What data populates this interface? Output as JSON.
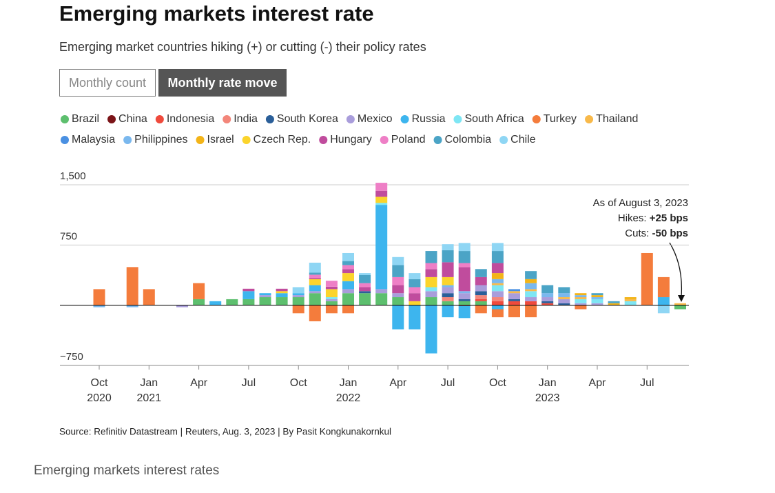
{
  "chart_data": {
    "type": "stacked_bar",
    "title": "Emerging markets interest rate",
    "subtitle": "Emerging market countries hiking (+) or cutting (-) their policy rates",
    "buttons": [
      "Monthly count",
      "Monthly rate move"
    ],
    "annotation": {
      "date": "As of August 3, 2023",
      "hikes_label": "Hikes:",
      "hikes": "+25 bps",
      "cuts_label": "Cuts:",
      "cuts": "-50 bps"
    },
    "source": "Source: Refinitiv Datastream | Reuters, Aug. 3, 2023 | By Pasit Kongkunakornkul",
    "caption": "Emerging markets interest rates",
    "categories": [
      "Oct 2020",
      null,
      null,
      "Jan 2021",
      null,
      null,
      "Apr",
      null,
      null,
      "Jul",
      null,
      null,
      "Oct",
      null,
      null,
      "Jan 2022",
      null,
      null,
      "Apr",
      null,
      null,
      "Jul",
      null,
      null,
      "Oct",
      null,
      null,
      "Jan 2023",
      null,
      null,
      "Apr",
      null,
      null,
      "Jul",
      null,
      null
    ],
    "ylim": [
      -750,
      1500
    ],
    "yticks": [
      {
        "value": 1500,
        "label": "1,500"
      },
      750,
      {
        "value": -750,
        "label": "−750"
      }
    ],
    "grid": true,
    "series": [
      {
        "name": "Brazil",
        "color": "#5dbf6e",
        "values": [
          0,
          0,
          0,
          0,
          0,
          0,
          75,
          0,
          75,
          75,
          100,
          100,
          100,
          150,
          50,
          150,
          150,
          150,
          100,
          0,
          100,
          50,
          50,
          50,
          0,
          0,
          0,
          0,
          0,
          0,
          0,
          0,
          0,
          0,
          0,
          -50
        ]
      },
      {
        "name": "China",
        "color": "#7b1418",
        "values": [
          0,
          0,
          0,
          0,
          0,
          0,
          0,
          0,
          0,
          0,
          0,
          0,
          0,
          0,
          0,
          0,
          0,
          0,
          0,
          0,
          0,
          0,
          -10,
          0,
          0,
          0,
          0,
          0,
          0,
          0,
          0,
          0,
          0,
          0,
          0,
          0
        ]
      },
      {
        "name": "Indonesia",
        "color": "#ef4a3c",
        "values": [
          0,
          0,
          0,
          0,
          0,
          0,
          0,
          0,
          0,
          0,
          0,
          0,
          0,
          0,
          0,
          0,
          0,
          0,
          0,
          0,
          0,
          0,
          0,
          25,
          50,
          50,
          50,
          25,
          0,
          0,
          0,
          0,
          0,
          0,
          0,
          0
        ]
      },
      {
        "name": "India",
        "color": "#f3867a",
        "values": [
          0,
          0,
          0,
          0,
          0,
          0,
          0,
          0,
          0,
          0,
          0,
          0,
          0,
          0,
          0,
          0,
          0,
          0,
          0,
          0,
          0,
          50,
          0,
          50,
          50,
          0,
          0,
          0,
          0,
          0,
          0,
          0,
          0,
          0,
          0,
          0
        ]
      },
      {
        "name": "South Korea",
        "color": "#2b5f99",
        "values": [
          0,
          0,
          0,
          0,
          0,
          0,
          0,
          0,
          0,
          0,
          0,
          0,
          0,
          0,
          0,
          0,
          25,
          0,
          0,
          0,
          0,
          50,
          25,
          50,
          0,
          25,
          0,
          25,
          25,
          0,
          0,
          0,
          0,
          0,
          0,
          0
        ]
      },
      {
        "name": "Mexico",
        "color": "#a99ddb",
        "values": [
          0,
          0,
          0,
          0,
          0,
          -25,
          0,
          0,
          0,
          0,
          25,
          0,
          25,
          25,
          25,
          50,
          0,
          50,
          50,
          0,
          75,
          75,
          75,
          75,
          75,
          75,
          50,
          50,
          50,
          25,
          25,
          0,
          0,
          0,
          0,
          0
        ]
      },
      {
        "name": "Russia",
        "color": "#3db5ee",
        "values": [
          0,
          0,
          0,
          0,
          0,
          0,
          0,
          50,
          0,
          100,
          25,
          50,
          25,
          75,
          0,
          100,
          0,
          1050,
          -300,
          -300,
          -600,
          -150,
          -150,
          0,
          -50,
          0,
          0,
          0,
          0,
          0,
          0,
          0,
          0,
          0,
          100,
          0
        ]
      },
      {
        "name": "South Africa",
        "color": "#7ee6f4",
        "values": [
          0,
          0,
          0,
          0,
          0,
          0,
          0,
          0,
          0,
          0,
          0,
          0,
          0,
          0,
          25,
          0,
          0,
          25,
          0,
          0,
          50,
          0,
          0,
          0,
          75,
          0,
          75,
          0,
          0,
          50,
          50,
          0,
          50,
          0,
          0,
          0
        ]
      },
      {
        "name": "Turkey",
        "color": "#f47c3c",
        "values": [
          200,
          0,
          475,
          200,
          0,
          0,
          200,
          0,
          0,
          0,
          0,
          0,
          -100,
          -200,
          -100,
          -100,
          0,
          0,
          0,
          0,
          0,
          0,
          0,
          -100,
          -100,
          -150,
          -150,
          0,
          0,
          -50,
          0,
          0,
          0,
          650,
          250,
          0
        ]
      },
      {
        "name": "Thailand",
        "color": "#f8b94a",
        "values": [
          0,
          0,
          0,
          0,
          0,
          0,
          0,
          0,
          0,
          0,
          0,
          0,
          0,
          0,
          0,
          0,
          0,
          0,
          0,
          0,
          0,
          0,
          0,
          0,
          25,
          25,
          25,
          0,
          25,
          25,
          0,
          0,
          25,
          0,
          0,
          25
        ]
      },
      {
        "name": "Malaysia",
        "color": "#4a90e2",
        "values": [
          0,
          0,
          0,
          0,
          0,
          0,
          0,
          0,
          0,
          0,
          0,
          0,
          0,
          0,
          0,
          0,
          0,
          0,
          0,
          0,
          0,
          0,
          0,
          0,
          0,
          25,
          0,
          0,
          0,
          0,
          0,
          0,
          0,
          0,
          0,
          0
        ]
      },
      {
        "name": "Philippines",
        "color": "#7ab8ee",
        "values": [
          -25,
          0,
          -25,
          0,
          0,
          0,
          0,
          0,
          0,
          0,
          0,
          0,
          0,
          0,
          0,
          0,
          0,
          0,
          0,
          0,
          0,
          25,
          25,
          0,
          50,
          0,
          75,
          50,
          50,
          25,
          25,
          0,
          0,
          0,
          0,
          0
        ]
      },
      {
        "name": "Israel",
        "color": "#f3b418",
        "values": [
          0,
          0,
          0,
          0,
          0,
          0,
          0,
          0,
          0,
          0,
          0,
          0,
          0,
          0,
          0,
          0,
          0,
          0,
          0,
          0,
          0,
          0,
          0,
          0,
          75,
          0,
          50,
          0,
          0,
          25,
          25,
          25,
          25,
          0,
          0,
          0
        ]
      },
      {
        "name": "Czech Rep.",
        "color": "#fbd42c",
        "values": [
          0,
          0,
          0,
          0,
          0,
          0,
          0,
          0,
          0,
          0,
          0,
          25,
          0,
          75,
          100,
          100,
          0,
          75,
          0,
          50,
          125,
          100,
          0,
          0,
          0,
          0,
          0,
          0,
          0,
          0,
          0,
          0,
          0,
          0,
          0,
          0
        ]
      },
      {
        "name": "Hungary",
        "color": "#c04c9d",
        "values": [
          0,
          0,
          0,
          0,
          0,
          0,
          0,
          0,
          0,
          30,
          0,
          30,
          0,
          15,
          30,
          50,
          50,
          75,
          100,
          100,
          100,
          185,
          300,
          100,
          125,
          0,
          0,
          0,
          0,
          0,
          0,
          0,
          0,
          0,
          0,
          0
        ]
      },
      {
        "name": "Poland",
        "color": "#ee7fc6",
        "values": [
          0,
          0,
          0,
          0,
          0,
          0,
          0,
          0,
          0,
          0,
          0,
          0,
          0,
          40,
          75,
          50,
          50,
          100,
          100,
          75,
          75,
          0,
          50,
          0,
          0,
          0,
          0,
          0,
          0,
          0,
          0,
          0,
          0,
          0,
          0,
          0
        ]
      },
      {
        "name": "Colombia",
        "color": "#4ba4c6",
        "values": [
          0,
          0,
          0,
          0,
          0,
          0,
          0,
          0,
          0,
          0,
          0,
          0,
          0,
          25,
          0,
          50,
          100,
          0,
          150,
          100,
          150,
          150,
          150,
          100,
          150,
          0,
          100,
          100,
          75,
          0,
          25,
          25,
          0,
          0,
          0,
          0
        ]
      },
      {
        "name": "Chile",
        "color": "#8fd6f4",
        "values": [
          0,
          0,
          0,
          0,
          0,
          0,
          0,
          0,
          0,
          0,
          0,
          0,
          75,
          125,
          0,
          100,
          25,
          0,
          100,
          75,
          0,
          75,
          100,
          0,
          100,
          0,
          0,
          0,
          0,
          0,
          0,
          0,
          0,
          0,
          -100,
          0
        ]
      }
    ]
  }
}
